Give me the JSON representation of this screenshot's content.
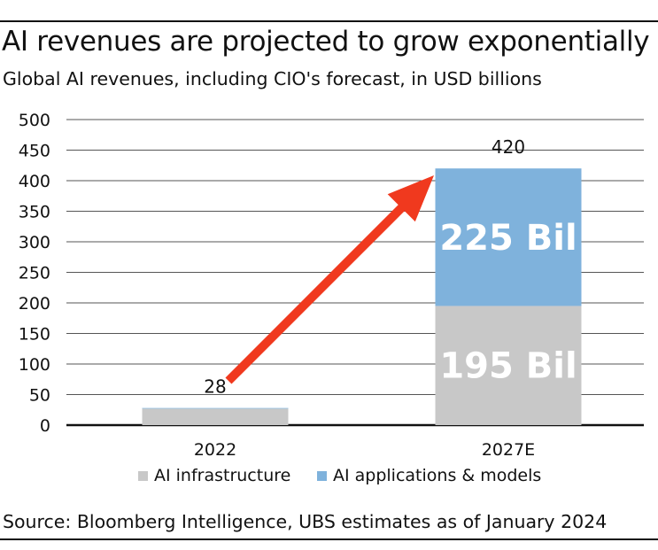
{
  "title": "AI revenues are projected to grow exponentially",
  "subtitle": "Global AI revenues, including CIO's forecast, in USD billions",
  "source": "Source: Bloomberg Intelligence, UBS estimates as of January 2024",
  "colors": {
    "infrastructure": "#c8c8c8",
    "applications": "#7fb2dc",
    "arrow": "#f0391e",
    "gridline": "#555555"
  },
  "chart_data": {
    "type": "bar",
    "stacked": true,
    "categories": [
      "2022",
      "2027E"
    ],
    "series": [
      {
        "name": "AI infrastructure",
        "values": [
          27,
          195
        ],
        "color": "#c8c8c8"
      },
      {
        "name": "AI applications & models",
        "values": [
          1,
          225
        ],
        "color": "#7fb2dc"
      }
    ],
    "totals": [
      28,
      420
    ],
    "total_labels": [
      "28",
      "420"
    ],
    "segment_labels": {
      "2027E": {
        "AI infrastructure": "195 Bil",
        "AI applications & models": "225 Bil"
      }
    },
    "ylim": [
      0,
      500
    ],
    "yticks": [
      0,
      50,
      100,
      150,
      200,
      250,
      300,
      350,
      400,
      450,
      500
    ],
    "grid": true,
    "legend": "bottom",
    "annotation": "arrow from 2022 total to top of 2027E bar"
  }
}
